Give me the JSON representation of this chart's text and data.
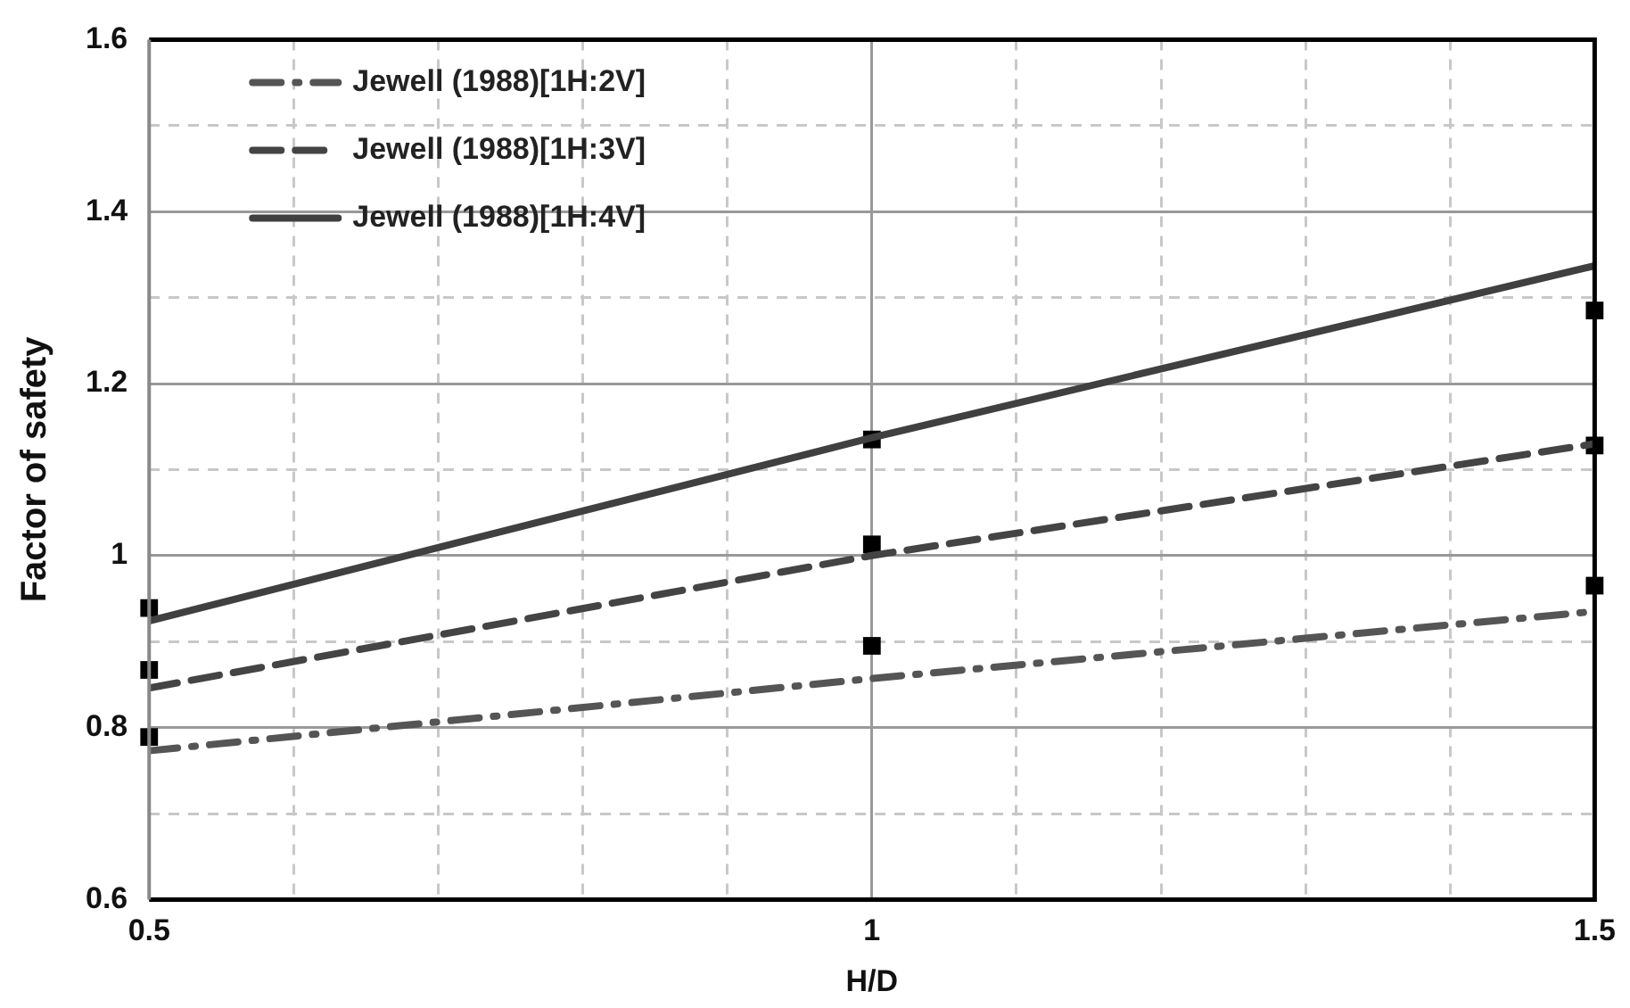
{
  "chart_data": {
    "type": "line",
    "xlabel": "H/D",
    "ylabel": "Factor of safety",
    "xlim": [
      0.5,
      1.5
    ],
    "xticks": [
      0.5,
      {
        "value": 0.6,
        "label": null
      },
      {
        "value": 0.7,
        "label": null
      },
      {
        "value": 0.8,
        "label": null
      },
      {
        "value": 0.9,
        "label": null
      },
      1,
      {
        "value": 1.1,
        "label": null
      },
      {
        "value": 1.2,
        "label": null
      },
      {
        "value": 1.3,
        "label": null
      },
      {
        "value": 1.4,
        "label": null
      },
      1.5
    ],
    "ylim": [
      0.6,
      1.6
    ],
    "yticks": [
      0.6,
      {
        "value": 0.7,
        "label": null
      },
      0.8,
      {
        "value": 0.9,
        "label": null
      },
      1,
      {
        "value": 1.1,
        "label": null
      },
      1.2,
      {
        "value": 1.3,
        "label": null
      },
      1.4,
      {
        "value": 1.5,
        "label": null
      },
      1.6
    ],
    "grid": true,
    "legend": "top left",
    "x": [
      0.5,
      1,
      1.5
    ],
    "series": [
      {
        "name": "Jewell (1988)[1H:2V]",
        "color": "#555555",
        "line_style": "dashdot",
        "marker": "none",
        "values": [
          0.773,
          0.857,
          0.935
        ]
      },
      {
        "name": "Jewell (1988)[1H:3V]",
        "color": "#444444",
        "line_style": "dashed",
        "marker": "none",
        "values": [
          0.846,
          1.0,
          1.13
        ]
      },
      {
        "name": "Jewell (1988)[1H:4V]",
        "color": "#404040",
        "line_style": "solid",
        "marker": "none",
        "values": [
          0.924,
          1.137,
          1.337
        ]
      },
      {
        "type": "scatter",
        "color": "#000000",
        "marker": "square",
        "values": [
          0.939,
          1.135,
          1.285
        ]
      },
      {
        "type": "scatter",
        "color": "#000000",
        "marker": "square",
        "values": [
          0.867,
          1.013,
          1.128
        ]
      },
      {
        "type": "scatter",
        "color": "#000000",
        "marker": "square",
        "values": [
          0.789,
          0.895,
          0.965
        ]
      }
    ]
  }
}
